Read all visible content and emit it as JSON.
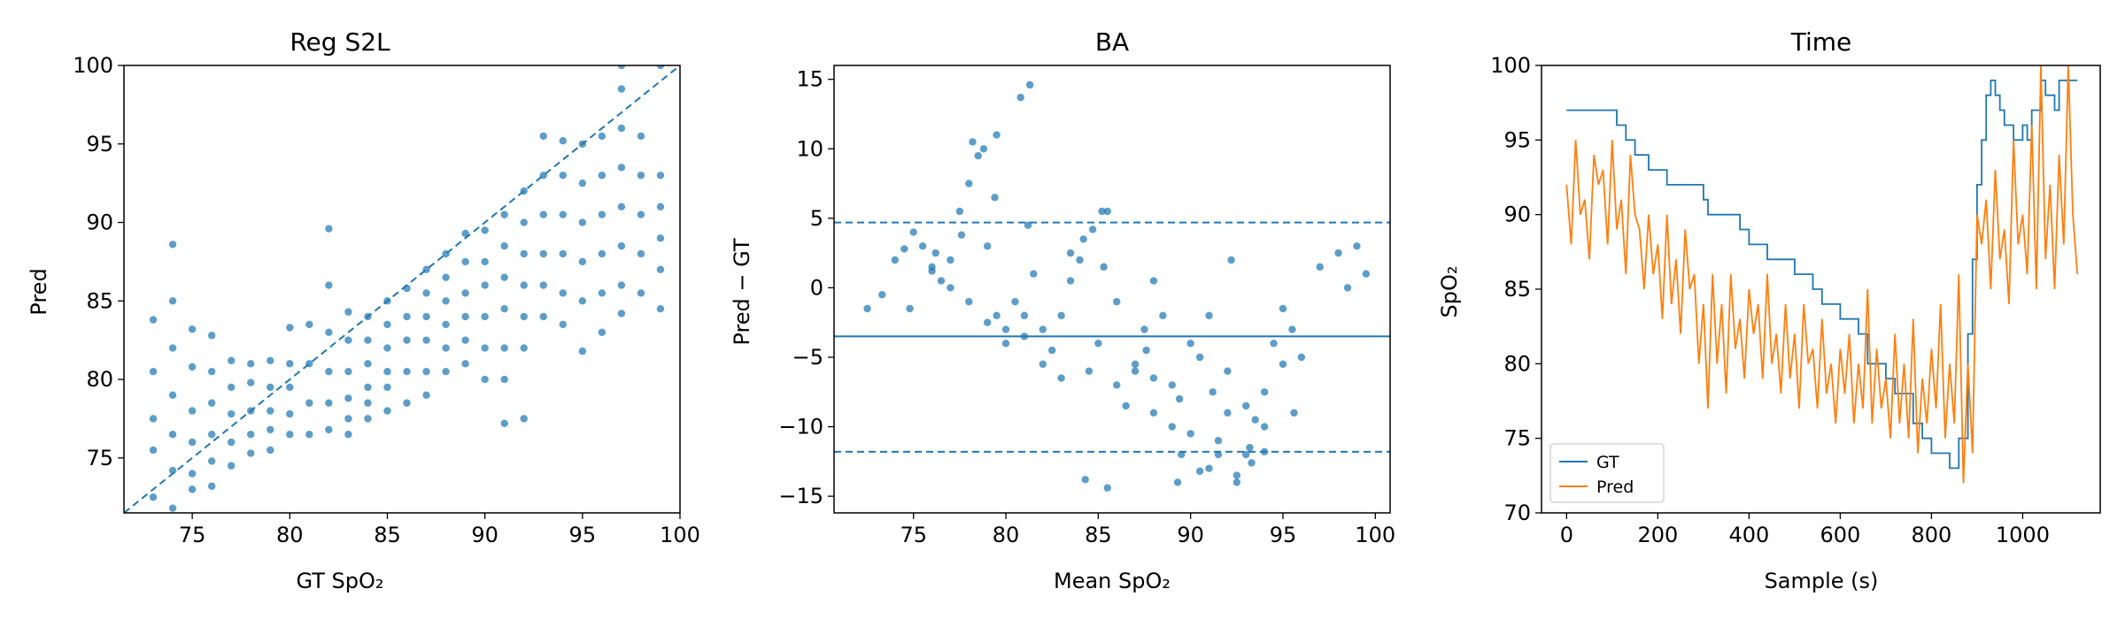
{
  "chart_data": [
    {
      "type": "scatter",
      "title": "Reg S2L",
      "xlabel": "GT SpO₂",
      "ylabel": "Pred",
      "xlim": [
        71.5,
        100
      ],
      "ylim": [
        71.5,
        100
      ],
      "xticks": [
        75,
        80,
        85,
        90,
        95,
        100
      ],
      "yticks": [
        75,
        80,
        85,
        90,
        95,
        100
      ],
      "identity_line": true,
      "point_color": "#1f77b4",
      "series": [
        {
          "x": [
            73,
            73,
            73,
            73,
            73,
            74,
            74,
            74,
            74,
            74,
            74,
            74,
            75,
            75,
            75,
            75,
            75,
            75,
            76,
            76,
            76,
            76,
            76,
            76,
            77,
            77,
            77,
            77,
            77,
            78,
            78,
            78,
            78,
            78,
            79,
            79,
            79,
            79,
            79,
            80,
            80,
            80,
            80,
            80,
            81,
            81,
            81,
            81,
            82,
            82,
            82,
            82,
            82,
            82,
            83,
            83,
            83,
            83,
            83,
            83,
            84,
            84,
            84,
            84,
            84,
            84,
            85,
            85,
            85,
            85,
            85,
            85,
            86,
            86,
            86,
            86,
            86,
            87,
            87,
            87,
            87,
            87,
            87,
            88,
            88,
            88,
            88,
            88,
            88,
            89,
            89,
            89,
            89,
            89,
            89,
            90,
            90,
            90,
            90,
            90,
            90,
            91,
            91,
            91,
            91,
            91,
            91,
            91,
            92,
            92,
            92,
            92,
            92,
            92,
            92,
            93,
            93,
            93,
            93,
            93,
            93,
            94,
            94,
            94,
            94,
            94,
            94,
            95,
            95,
            95,
            95,
            95,
            95,
            96,
            96,
            96,
            96,
            96,
            96,
            97,
            97,
            97,
            97,
            97,
            97,
            97,
            97,
            98,
            98,
            98,
            98,
            98,
            99,
            99,
            99,
            99,
            99,
            99
          ],
          "y": [
            83.8,
            80.5,
            77.5,
            75.5,
            72.5,
            88.6,
            85.0,
            82.0,
            79.0,
            76.5,
            74.2,
            71.8,
            83.2,
            80.8,
            78.0,
            76.0,
            74.0,
            73.0,
            82.8,
            80.5,
            78.5,
            76.5,
            74.8,
            73.2,
            81.2,
            79.5,
            77.8,
            76.0,
            74.5,
            81.0,
            79.8,
            78.0,
            76.5,
            75.3,
            81.2,
            79.5,
            78.0,
            76.8,
            75.5,
            83.3,
            81.0,
            79.5,
            77.8,
            76.5,
            83.5,
            81.0,
            78.5,
            76.5,
            89.6,
            86.0,
            83.0,
            80.5,
            78.5,
            76.8,
            84.3,
            82.5,
            80.5,
            78.8,
            77.5,
            76.5,
            84.0,
            82.5,
            81.0,
            79.5,
            78.5,
            77.5,
            85.0,
            83.5,
            82.0,
            80.5,
            79.5,
            78.0,
            85.8,
            84.0,
            82.5,
            80.5,
            78.5,
            87.0,
            85.5,
            84.0,
            82.5,
            80.5,
            79.0,
            88.0,
            86.5,
            85.0,
            83.5,
            82.0,
            80.5,
            89.3,
            87.5,
            85.5,
            84.0,
            82.5,
            81.0,
            89.5,
            87.5,
            86.0,
            84.0,
            82.0,
            80.0,
            90.5,
            88.5,
            86.5,
            84.5,
            82.0,
            77.2,
            80.0,
            92.0,
            90.0,
            88.0,
            86.0,
            84.0,
            82.0,
            77.5,
            95.5,
            93.0,
            90.5,
            88.0,
            86.0,
            84.0,
            95.2,
            93.0,
            90.5,
            88.0,
            85.5,
            83.5,
            95.0,
            92.5,
            90.0,
            87.5,
            85.0,
            81.8,
            95.5,
            93.0,
            90.5,
            88.0,
            85.5,
            83.0,
            100.0,
            98.5,
            96.0,
            93.5,
            91.0,
            88.5,
            86.0,
            84.2,
            95.5,
            93.0,
            90.5,
            88.0,
            85.5,
            100.0,
            93.0,
            91.0,
            89.0,
            87.0,
            84.5
          ]
        }
      ]
    },
    {
      "type": "scatter",
      "title": "BA",
      "xlabel": "Mean SpO₂",
      "ylabel": "Pred − GT",
      "xlim": [
        70.7,
        100.8
      ],
      "ylim": [
        -16.2,
        16.0
      ],
      "xticks": [
        75,
        80,
        85,
        90,
        95,
        100
      ],
      "yticks": [
        -15,
        -10,
        -5,
        0,
        5,
        10,
        15
      ],
      "mean_line": -3.5,
      "limit_lines": [
        4.7,
        -11.8
      ],
      "point_color": "#1f77b4",
      "series": [
        {
          "x": [
            72.5,
            73.3,
            74.0,
            74.5,
            75.0,
            75.5,
            76.0,
            76.5,
            77.0,
            77.5,
            78.0,
            78.5,
            79.0,
            79.5,
            80.0,
            80.5,
            81.0,
            81.5,
            82.0,
            82.5,
            83.0,
            83.5,
            84.0,
            84.5,
            85.0,
            85.5,
            86.0,
            86.5,
            87.0,
            87.5,
            88.0,
            88.5,
            89.0,
            89.5,
            90.0,
            90.5,
            91.0,
            91.5,
            92.0,
            92.5,
            93.0,
            93.5,
            94.0,
            94.5,
            95.0,
            95.5,
            96.0,
            97.0,
            98.0,
            98.5,
            99.0,
            99.5,
            78.2,
            78.8,
            79.5,
            80.8,
            81.3,
            84.3,
            85.5,
            89.3,
            90.5,
            91.5,
            92.5,
            93.3,
            94.0,
            84.2,
            84.7,
            85.2,
            88.0,
            92.2,
            76.0,
            77.0,
            78.0,
            79.0,
            80.0,
            81.0,
            82.0,
            83.0,
            86.0,
            87.0,
            88.0,
            89.0,
            90.0,
            91.0,
            92.0,
            93.0,
            94.0,
            95.0,
            74.8,
            76.2,
            77.6,
            79.4,
            81.2,
            83.5,
            85.3,
            87.6,
            89.4,
            91.2,
            93.2,
            95.6
          ],
          "y": [
            -1.5,
            -0.5,
            2.0,
            2.8,
            4.0,
            3.0,
            1.5,
            0.5,
            2.0,
            5.5,
            7.5,
            9.5,
            3.0,
            -2.0,
            -3.0,
            -1.0,
            -2.0,
            1.0,
            -3.0,
            -4.5,
            -2.0,
            0.5,
            2.0,
            -6.0,
            -4.0,
            5.5,
            -7.0,
            -8.5,
            -6.0,
            -3.0,
            -9.0,
            -2.0,
            -10.0,
            -12.0,
            -10.5,
            -5.0,
            -13.0,
            -11.0,
            -9.0,
            -14.0,
            -12.0,
            -9.5,
            -7.5,
            -4.0,
            -1.5,
            -3.0,
            -5.0,
            1.5,
            2.5,
            0.0,
            3.0,
            1.0,
            10.5,
            10.0,
            11.0,
            13.7,
            14.6,
            -13.8,
            -14.4,
            -14.0,
            -13.2,
            -12.0,
            -13.5,
            -12.6,
            -11.8,
            3.5,
            4.2,
            5.5,
            0.5,
            2.0,
            1.2,
            0.0,
            -1.0,
            -2.5,
            -4.0,
            -3.5,
            -5.5,
            -6.5,
            -1.0,
            -5.5,
            -6.5,
            -7.0,
            -4.0,
            -2.0,
            -6.0,
            -8.5,
            -10.0,
            -5.5,
            -1.5,
            2.5,
            3.8,
            6.5,
            4.5,
            2.5,
            1.5,
            -4.5,
            -8.0,
            -7.5,
            -11.5,
            -9.0
          ]
        }
      ]
    },
    {
      "type": "line",
      "title": "Time",
      "xlabel": "Sample (s)",
      "ylabel": "SpO₂",
      "xlim": [
        -55,
        1170
      ],
      "ylim": [
        70,
        100
      ],
      "xticks": [
        0,
        200,
        400,
        600,
        800,
        1000
      ],
      "yticks": [
        70,
        75,
        80,
        85,
        90,
        95,
        100
      ],
      "legend": "bottom-left",
      "series": [
        {
          "name": "GT",
          "color": "#1f77b4",
          "x": [
            0,
            100,
            110,
            130,
            150,
            180,
            220,
            300,
            310,
            380,
            400,
            440,
            460,
            500,
            520,
            540,
            560,
            580,
            600,
            620,
            640,
            660,
            680,
            700,
            720,
            740,
            760,
            780,
            800,
            820,
            840,
            860,
            880,
            890,
            900,
            910,
            920,
            930,
            940,
            950,
            960,
            980,
            1000,
            1010,
            1020,
            1040,
            1050,
            1070,
            1080,
            1100,
            1110,
            1120
          ],
          "y": [
            97,
            97,
            96,
            95,
            94,
            93,
            92,
            91,
            90,
            89,
            88,
            87,
            87,
            86,
            86,
            85,
            84,
            84,
            83,
            83,
            82,
            80,
            80,
            79,
            78,
            78,
            76,
            75,
            74,
            74,
            73,
            75,
            82,
            87,
            92,
            95,
            98,
            99,
            98,
            97,
            96,
            95,
            96,
            95,
            97,
            99,
            98,
            97,
            99,
            99,
            99,
            99
          ]
        },
        {
          "name": "Pred",
          "color": "#ff7f0e",
          "x": [
            0,
            10,
            20,
            30,
            40,
            50,
            60,
            70,
            80,
            90,
            100,
            110,
            120,
            130,
            140,
            150,
            160,
            170,
            180,
            190,
            200,
            210,
            220,
            230,
            240,
            250,
            260,
            270,
            280,
            290,
            300,
            310,
            320,
            330,
            340,
            350,
            360,
            370,
            380,
            390,
            400,
            410,
            420,
            430,
            440,
            450,
            460,
            470,
            480,
            490,
            500,
            510,
            520,
            530,
            540,
            550,
            560,
            570,
            580,
            590,
            600,
            610,
            620,
            630,
            640,
            650,
            660,
            670,
            680,
            690,
            700,
            710,
            720,
            730,
            740,
            750,
            760,
            770,
            780,
            790,
            800,
            810,
            820,
            830,
            840,
            850,
            860,
            870,
            880,
            890,
            900,
            910,
            920,
            930,
            940,
            950,
            960,
            970,
            980,
            990,
            1000,
            1010,
            1020,
            1030,
            1040,
            1050,
            1060,
            1070,
            1080,
            1090,
            1100,
            1110,
            1120
          ],
          "y": [
            92,
            88,
            95,
            90,
            91,
            87,
            94,
            92,
            93,
            88,
            95,
            89,
            91,
            86,
            94,
            90,
            89,
            85,
            90,
            86,
            88,
            83,
            90,
            84,
            87,
            82,
            89,
            85,
            86,
            80,
            84,
            77,
            86,
            80,
            84,
            78,
            86,
            81,
            83,
            79,
            85,
            82,
            84,
            79,
            86,
            80,
            82,
            78,
            84,
            79,
            82,
            77,
            84,
            80,
            81,
            77,
            83,
            78,
            80,
            76,
            81,
            78,
            82,
            76,
            80,
            77,
            85,
            76,
            81,
            77,
            79,
            75,
            82,
            76,
            80,
            75,
            83,
            74,
            79,
            76,
            81,
            77,
            84,
            75,
            80,
            76,
            86,
            72,
            80,
            74,
            90,
            88,
            91,
            85,
            93,
            87,
            89,
            84,
            95,
            88,
            90,
            86,
            96,
            85,
            100,
            87,
            92,
            85,
            94,
            88,
            100,
            90,
            86
          ]
        }
      ]
    }
  ]
}
